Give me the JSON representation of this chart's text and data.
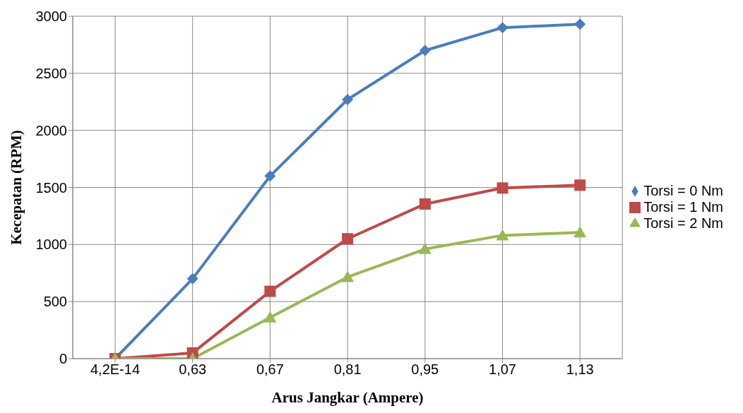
{
  "chart_data": {
    "type": "line",
    "xlabel": "Arus Jangkar (Ampere)",
    "ylabel": "Kecepatan (RPM)",
    "categories": [
      "4,2E-14",
      "0,63",
      "0,67",
      "0,81",
      "0,95",
      "1,07",
      "1,13"
    ],
    "series": [
      {
        "name": "Torsi = 0 Nm",
        "color": "#4a7ebb",
        "marker": "diamond",
        "values": [
          0,
          700,
          1600,
          2270,
          2700,
          2900,
          2930
        ]
      },
      {
        "name": "Torsi = 1 Nm",
        "color": "#be4b48",
        "marker": "square",
        "values": [
          0,
          50,
          590,
          1050,
          1355,
          1495,
          1520
        ]
      },
      {
        "name": "Torsi = 2 Nm",
        "color": "#98b954",
        "marker": "triangle",
        "values": [
          0,
          0,
          360,
          715,
          960,
          1080,
          1105
        ]
      }
    ],
    "ylim": [
      0,
      3000
    ],
    "yticks": [
      0,
      500,
      1000,
      1500,
      2000,
      2500,
      3000
    ],
    "grid": true,
    "legend": "right",
    "line_style": "solid"
  }
}
